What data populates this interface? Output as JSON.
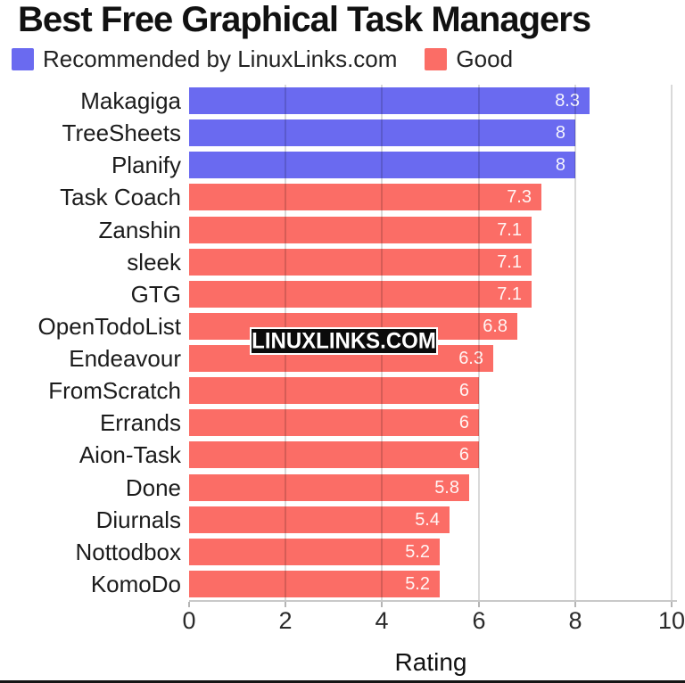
{
  "chart_data": {
    "type": "bar",
    "orientation": "horizontal",
    "title": "Best Free Graphical Task Managers",
    "xlabel": "Rating",
    "xlim": [
      0,
      10
    ],
    "xticks": [
      "0",
      "2",
      "4",
      "6",
      "8",
      "10"
    ],
    "grid": "vertical-on",
    "legend_position": "top-left",
    "watermark": "LINUXLINKS.COM",
    "legend": [
      {
        "key": "recommended",
        "label": "Recommended by LinuxLinks.com",
        "color": "#6a6af0"
      },
      {
        "key": "good",
        "label": "Good",
        "color": "#fb6d66"
      }
    ],
    "items": [
      {
        "name": "Makagiga",
        "value": 8.3,
        "value_label": "8.3",
        "group": "recommended"
      },
      {
        "name": "TreeSheets",
        "value": 8,
        "value_label": "8",
        "group": "recommended"
      },
      {
        "name": "Planify",
        "value": 8,
        "value_label": "8",
        "group": "recommended"
      },
      {
        "name": "Task Coach",
        "value": 7.3,
        "value_label": "7.3",
        "group": "good"
      },
      {
        "name": "Zanshin",
        "value": 7.1,
        "value_label": "7.1",
        "group": "good"
      },
      {
        "name": "sleek",
        "value": 7.1,
        "value_label": "7.1",
        "group": "good"
      },
      {
        "name": "GTG",
        "value": 7.1,
        "value_label": "7.1",
        "group": "good"
      },
      {
        "name": "OpenTodoList",
        "value": 6.8,
        "value_label": "6.8",
        "group": "good"
      },
      {
        "name": "Endeavour",
        "value": 6.3,
        "value_label": "6.3",
        "group": "good"
      },
      {
        "name": "FromScratch",
        "value": 6,
        "value_label": "6",
        "group": "good"
      },
      {
        "name": "Errands",
        "value": 6,
        "value_label": "6",
        "group": "good"
      },
      {
        "name": "Aion-Task",
        "value": 6,
        "value_label": "6",
        "group": "good"
      },
      {
        "name": "Done",
        "value": 5.8,
        "value_label": "5.8",
        "group": "good"
      },
      {
        "name": "Diurnals",
        "value": 5.4,
        "value_label": "5.4",
        "group": "good"
      },
      {
        "name": "Nottodbox",
        "value": 5.2,
        "value_label": "5.2",
        "group": "good"
      },
      {
        "name": "KomoDo",
        "value": 5.2,
        "value_label": "5.2",
        "group": "good"
      }
    ]
  }
}
